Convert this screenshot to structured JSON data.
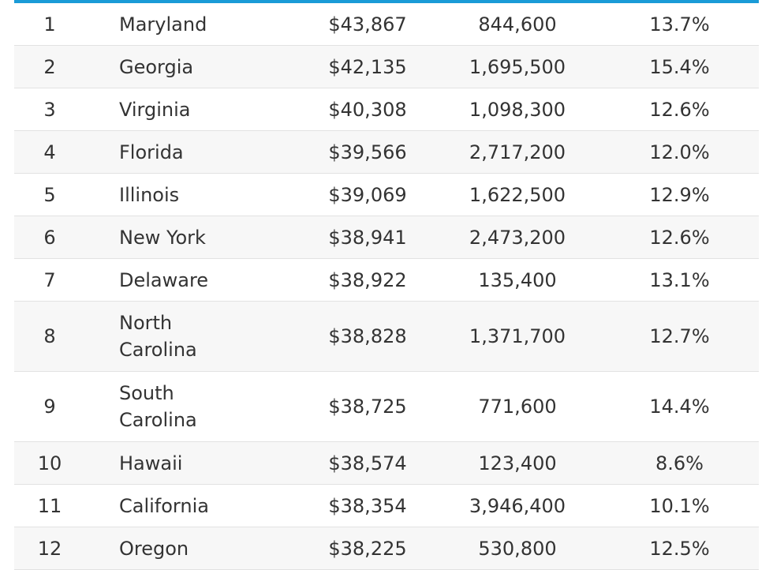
{
  "table": {
    "accent_color": "#1a9bd7",
    "rows": [
      {
        "rank": "1",
        "state": "Maryland",
        "salary": "$43,867",
        "employment": "844,600",
        "percent": "13.7%"
      },
      {
        "rank": "2",
        "state": "Georgia",
        "salary": "$42,135",
        "employment": "1,695,500",
        "percent": "15.4%"
      },
      {
        "rank": "3",
        "state": "Virginia",
        "salary": "$40,308",
        "employment": "1,098,300",
        "percent": "12.6%"
      },
      {
        "rank": "4",
        "state": "Florida",
        "salary": "$39,566",
        "employment": "2,717,200",
        "percent": "12.0%"
      },
      {
        "rank": "5",
        "state": "Illinois",
        "salary": "$39,069",
        "employment": "1,622,500",
        "percent": "12.9%"
      },
      {
        "rank": "6",
        "state": "New York",
        "salary": "$38,941",
        "employment": "2,473,200",
        "percent": "12.6%"
      },
      {
        "rank": "7",
        "state": "Delaware",
        "salary": "$38,922",
        "employment": "135,400",
        "percent": "13.1%"
      },
      {
        "rank": "8",
        "state": "North Carolina",
        "salary": "$38,828",
        "employment": "1,371,700",
        "percent": "12.7%"
      },
      {
        "rank": "9",
        "state": "South Carolina",
        "salary": "$38,725",
        "employment": "771,600",
        "percent": "14.4%"
      },
      {
        "rank": "10",
        "state": "Hawaii",
        "salary": "$38,574",
        "employment": "123,400",
        "percent": "8.6%"
      },
      {
        "rank": "11",
        "state": "California",
        "salary": "$38,354",
        "employment": "3,946,400",
        "percent": "10.1%"
      },
      {
        "rank": "12",
        "state": "Oregon",
        "salary": "$38,225",
        "employment": "530,800",
        "percent": "12.5%"
      }
    ]
  }
}
